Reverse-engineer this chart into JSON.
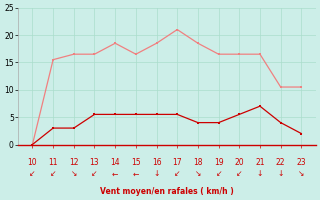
{
  "x": [
    10,
    11,
    12,
    13,
    14,
    15,
    16,
    17,
    18,
    19,
    20,
    21,
    22,
    23
  ],
  "y_rafales": [
    0,
    15.5,
    16.5,
    16.5,
    18.5,
    16.5,
    18.5,
    21,
    18.5,
    16.5,
    16.5,
    16.5,
    10.5,
    10.5
  ],
  "y_moyen": [
    0,
    3,
    3,
    5.5,
    5.5,
    5.5,
    5.5,
    5.5,
    4,
    4,
    5.5,
    7,
    4,
    2
  ],
  "color_rafales": "#f08080",
  "color_moyen": "#cc0000",
  "background_color": "#cceee8",
  "grid_color": "#aaddcc",
  "xlabel": "Vent moyen/en rafales ( km/h )",
  "xlabel_color": "#cc0000",
  "ylim": [
    0,
    25
  ],
  "yticks": [
    0,
    5,
    10,
    15,
    20,
    25
  ],
  "xticks": [
    10,
    11,
    12,
    13,
    14,
    15,
    16,
    17,
    18,
    19,
    20,
    21,
    22,
    23
  ],
  "tick_color": "#cc0000",
  "arrow_color": "#cc0000",
  "arrows": [
    "↙",
    "↙",
    "↘",
    "↙",
    "←",
    "←",
    "↓",
    "↙",
    "↘",
    "↙",
    "↙",
    "↓",
    "↓",
    "↘"
  ]
}
